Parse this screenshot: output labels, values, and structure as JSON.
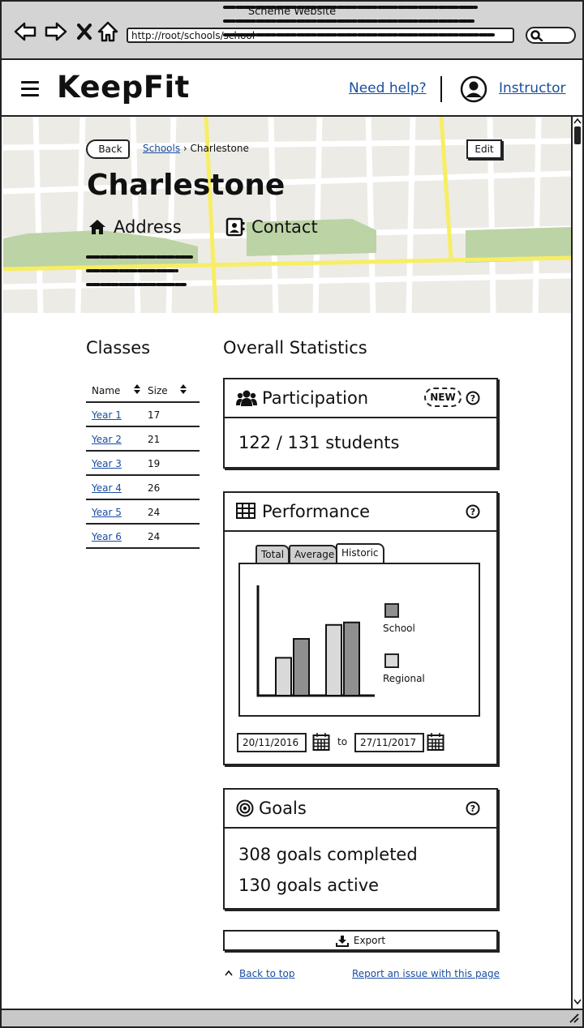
{
  "window": {
    "title": "Scheme Website",
    "url": "http://root/schools/school"
  },
  "header": {
    "logo": "KeepFit",
    "help_link": "Need help?",
    "user_link": "Instructor"
  },
  "hero": {
    "back_label": "Back",
    "breadcrumb": {
      "parent": "Schools",
      "current": "Charlestone"
    },
    "edit_label": "Edit",
    "school_name": "Charlestone",
    "address_label": "Address",
    "contact_label": "Contact"
  },
  "classes": {
    "title": "Classes",
    "columns": [
      "Name",
      "Size"
    ],
    "rows": [
      {
        "name": "Year 1",
        "size": "17"
      },
      {
        "name": "Year 2",
        "size": "21"
      },
      {
        "name": "Year 3",
        "size": "19"
      },
      {
        "name": "Year 4",
        "size": "26"
      },
      {
        "name": "Year 5",
        "size": "24"
      },
      {
        "name": "Year 6",
        "size": "24"
      }
    ]
  },
  "stats": {
    "title": "Overall Statistics",
    "participation": {
      "title": "Participation",
      "badge": "NEW",
      "value": "122 / 131 students"
    },
    "performance": {
      "title": "Performance",
      "tabs": [
        "Total",
        "Average",
        "Historic"
      ],
      "active_tab": "Historic",
      "from_date": "20/11/2016",
      "to_label": "to",
      "to_date": "27/11/2017"
    },
    "goals": {
      "title": "Goals",
      "completed": "308 goals completed",
      "active": "130 goals active"
    }
  },
  "chart_data": {
    "type": "bar",
    "categories": [
      "",
      ""
    ],
    "series": [
      {
        "name": "Regional",
        "values": [
          46,
          86
        ],
        "color": "#d9d9d9"
      },
      {
        "name": "School",
        "values": [
          69,
          89
        ],
        "color": "#8f8f8f"
      }
    ],
    "ylim": [
      0,
      140
    ],
    "xlabel": "",
    "ylabel": "",
    "legend": "right"
  },
  "footer": {
    "export_label": "Export",
    "back_to_top": "Back to top",
    "report_issue": "Report an issue with this page"
  },
  "colors": {
    "link": "#1a4ea0",
    "map_road": "#f7ee62",
    "map_park": "#bcd3a5",
    "map_bg": "#ecebe6"
  }
}
